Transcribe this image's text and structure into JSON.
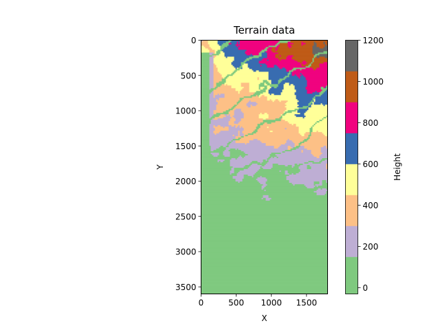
{
  "chart_data": {
    "type": "heatmap",
    "title": "Terrain data",
    "xlabel": "X",
    "ylabel": "Y",
    "xlim": [
      0,
      1800
    ],
    "ylim": [
      3600,
      0
    ],
    "xticks": [
      "0",
      "500",
      "1000",
      "1500"
    ],
    "yticks": [
      "0",
      "500",
      "1000",
      "1500",
      "2000",
      "2500",
      "3000",
      "3500"
    ],
    "colorbar": {
      "label": "Height",
      "ticks": [
        "0",
        "200",
        "400",
        "600",
        "800",
        "1000",
        "1200"
      ],
      "range": [
        -30,
        1200
      ],
      "levels": [
        {
          "from": -30,
          "to": 150,
          "color": "#7fc97f"
        },
        {
          "from": 150,
          "to": 300,
          "color": "#beaed4"
        },
        {
          "from": 300,
          "to": 450,
          "color": "#fdc086"
        },
        {
          "from": 450,
          "to": 600,
          "color": "#ffff99"
        },
        {
          "from": 600,
          "to": 750,
          "color": "#386cb0"
        },
        {
          "from": 750,
          "to": 900,
          "color": "#f0027f"
        },
        {
          "from": 900,
          "to": 1050,
          "color": "#bf5b17"
        },
        {
          "from": 1050,
          "to": 1200,
          "color": "#666666"
        }
      ]
    },
    "zones_by_y": [
      {
        "y0": 0,
        "y1": 300,
        "dominant": [
          1050,
          900,
          750,
          600
        ]
      },
      {
        "y0": 300,
        "y1": 1200,
        "dominant": [
          750,
          600,
          450,
          300,
          0
        ]
      },
      {
        "y0": 1200,
        "y1": 2000,
        "dominant": [
          450,
          300,
          150,
          0
        ]
      },
      {
        "y0": 2000,
        "y1": 2900,
        "dominant": [
          300,
          150,
          0
        ]
      },
      {
        "y0": 2900,
        "y1": 3600,
        "dominant": [
          0
        ]
      }
    ]
  }
}
